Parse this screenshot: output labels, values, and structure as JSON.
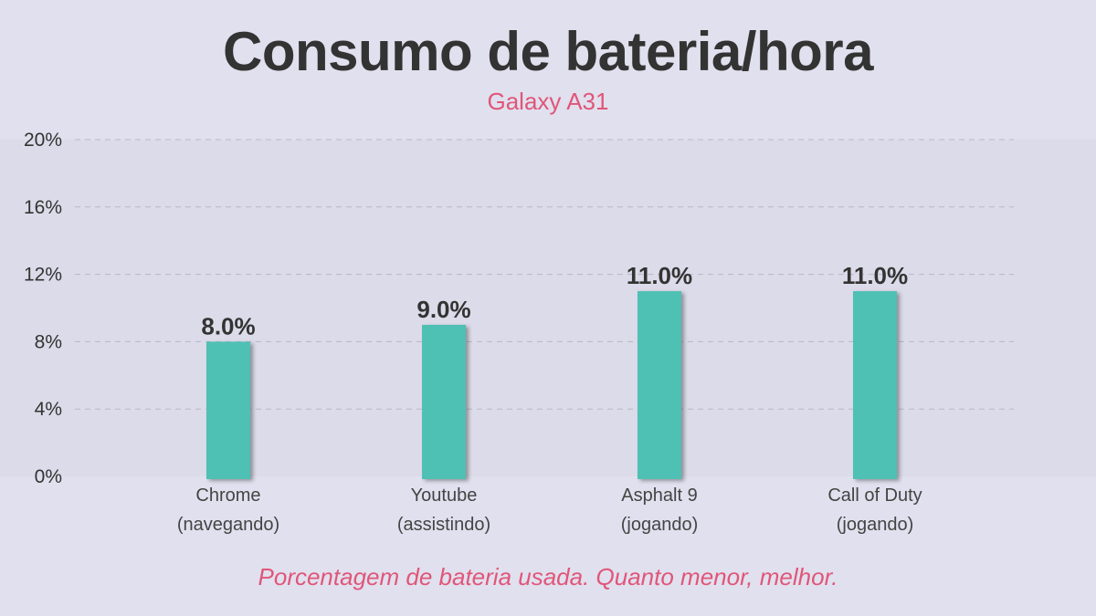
{
  "header": {
    "title": "Consumo de bateria/hora",
    "subtitle": "Galaxy A31"
  },
  "footer": {
    "note": "Porcentagem de bateria usada. Quanto menor, melhor."
  },
  "colors": {
    "bar": "#4fc0b4",
    "accent": "#e05679",
    "text": "#333333",
    "plot_bg": "#dcdbe9",
    "grid": "#b9b8c8"
  },
  "chart_data": {
    "type": "bar",
    "title": "Consumo de bateria/hora",
    "subtitle": "Galaxy A31",
    "categories": [
      [
        "Chrome",
        "(navegando)"
      ],
      [
        "Youtube",
        "(assistindo)"
      ],
      [
        "Asphalt 9",
        "(jogando)"
      ],
      [
        "Call of Duty",
        "(jogando)"
      ]
    ],
    "values": [
      8.0,
      9.0,
      11.0,
      11.0
    ],
    "value_labels": [
      "8.0%",
      "9.0%",
      "11.0%",
      "11.0%"
    ],
    "ylim": [
      0,
      20
    ],
    "yticks": [
      0,
      4,
      8,
      12,
      16,
      20
    ],
    "ytick_labels": [
      "0%",
      "4%",
      "8%",
      "12%",
      "16%",
      "20%"
    ],
    "xlabel": "",
    "ylabel": "",
    "grid": true,
    "legend": "none"
  }
}
